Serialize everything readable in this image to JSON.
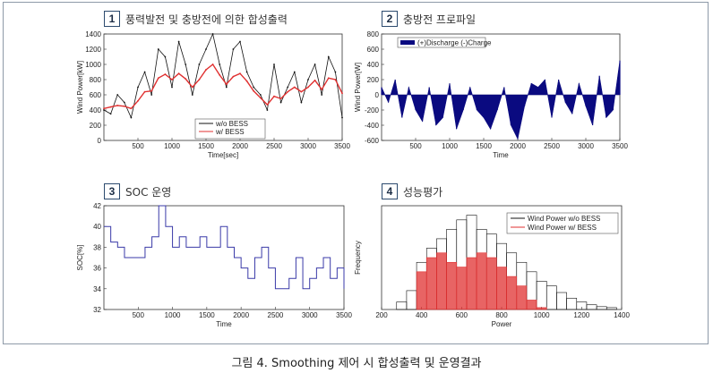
{
  "caption": "그림 4. Smoothing 제어 시 합성출력 및 운영결과",
  "panels": [
    {
      "num": "1",
      "title": "풍력발전 및 충방전에 의한 합성출력"
    },
    {
      "num": "2",
      "title": "충방전 프로파일"
    },
    {
      "num": "3",
      "title": "SOC 운영"
    },
    {
      "num": "4",
      "title": "성능평가"
    }
  ],
  "colors": {
    "black": "#111111",
    "red": "#e03030",
    "navy": "#0a0a80",
    "blue": "#3a3aa8"
  },
  "chart_data": [
    {
      "type": "line",
      "xlabel": "Time[sec]",
      "ylabel": "Wind Power[kW]",
      "xlim": [
        0,
        3500
      ],
      "ylim": [
        0,
        1400
      ],
      "xticks": [
        500,
        1000,
        1500,
        2000,
        2500,
        3000,
        3500
      ],
      "yticks": [
        0,
        200,
        400,
        600,
        800,
        1000,
        1200,
        1400
      ],
      "legend_position": "bottom-center",
      "x": [
        0,
        100,
        200,
        300,
        400,
        500,
        600,
        700,
        800,
        900,
        1000,
        1100,
        1200,
        1300,
        1400,
        1500,
        1600,
        1700,
        1800,
        1900,
        2000,
        2100,
        2200,
        2300,
        2400,
        2500,
        2600,
        2700,
        2800,
        2900,
        3000,
        3100,
        3200,
        3300,
        3400,
        3500
      ],
      "series": [
        {
          "name": "w/o BESS",
          "color": "black",
          "values": [
            400,
            350,
            600,
            500,
            300,
            700,
            900,
            600,
            1200,
            1100,
            700,
            1300,
            1000,
            600,
            1000,
            1200,
            1400,
            1000,
            700,
            1200,
            1300,
            900,
            700,
            600,
            400,
            1000,
            500,
            700,
            900,
            500,
            800,
            1000,
            600,
            1100,
            900,
            300
          ]
        },
        {
          "name": "w/ BESS",
          "color": "red",
          "values": [
            420,
            440,
            460,
            450,
            420,
            520,
            640,
            650,
            820,
            870,
            800,
            880,
            810,
            700,
            800,
            930,
            1000,
            860,
            740,
            840,
            880,
            780,
            650,
            560,
            470,
            580,
            550,
            640,
            700,
            640,
            700,
            790,
            670,
            820,
            800,
            620
          ]
        }
      ]
    },
    {
      "type": "area",
      "xlabel": "Time",
      "ylabel": "Wind Power[W]",
      "xlim": [
        0,
        3500
      ],
      "ylim": [
        -600,
        800
      ],
      "xticks": [
        500,
        1000,
        1500,
        2000,
        2500,
        3000,
        3500
      ],
      "yticks": [
        -600,
        -400,
        -200,
        0,
        200,
        400,
        600,
        800
      ],
      "legend_position": "top-left",
      "x": [
        0,
        100,
        200,
        300,
        400,
        500,
        600,
        700,
        800,
        900,
        1000,
        1100,
        1200,
        1300,
        1400,
        1500,
        1600,
        1700,
        1800,
        1900,
        2000,
        2100,
        2200,
        2300,
        2400,
        2500,
        2600,
        2700,
        2800,
        2900,
        3000,
        3100,
        3200,
        3300,
        3400,
        3500
      ],
      "series": [
        {
          "name": "(+)Discharge (-)Charge",
          "color": "navy",
          "values": [
            100,
            -100,
            200,
            -300,
            100,
            -200,
            -350,
            100,
            -400,
            -300,
            150,
            -450,
            -200,
            100,
            -200,
            -300,
            -450,
            -200,
            100,
            -400,
            -580,
            -150,
            150,
            100,
            200,
            -300,
            200,
            -100,
            -250,
            150,
            -150,
            -400,
            250,
            -300,
            -200,
            450
          ]
        }
      ]
    },
    {
      "type": "line",
      "xlabel": "Time",
      "ylabel": "SOC[%]",
      "xlim": [
        0,
        3500
      ],
      "ylim": [
        32,
        42
      ],
      "xticks": [
        500,
        1000,
        1500,
        2000,
        2500,
        3000,
        3500
      ],
      "yticks": [
        32,
        34,
        36,
        38,
        40,
        42
      ],
      "x": [
        0,
        100,
        200,
        300,
        400,
        500,
        600,
        700,
        800,
        900,
        1000,
        1100,
        1200,
        1300,
        1400,
        1500,
        1600,
        1700,
        1800,
        1900,
        2000,
        2100,
        2200,
        2300,
        2400,
        2500,
        2600,
        2700,
        2800,
        2900,
        3000,
        3100,
        3200,
        3300,
        3400,
        3500
      ],
      "series": [
        {
          "color": "blue",
          "values": [
            40,
            38.5,
            38,
            37,
            37,
            37,
            38,
            39,
            42,
            40,
            38,
            39,
            38,
            38,
            39,
            38,
            38,
            40,
            38,
            37,
            36,
            35,
            37,
            38,
            36,
            34,
            34,
            35,
            37,
            34,
            35,
            36,
            37,
            35,
            36,
            34
          ]
        }
      ]
    },
    {
      "type": "bar",
      "xlabel": "Power",
      "ylabel": "Frequency",
      "xlim": [
        200,
        1400
      ],
      "ylim": [
        0,
        110
      ],
      "xticks": [
        200,
        400,
        600,
        800,
        1000,
        1200,
        1400
      ],
      "legend_position": "top-right",
      "x": [
        300,
        350,
        400,
        450,
        500,
        550,
        600,
        650,
        700,
        750,
        800,
        850,
        900,
        950,
        1000,
        1050,
        1100,
        1150,
        1200,
        1250,
        1300,
        1350
      ],
      "series": [
        {
          "name": "Wind Power w/o BESS",
          "color": "black",
          "values": [
            8,
            20,
            50,
            65,
            75,
            85,
            95,
            100,
            85,
            80,
            70,
            60,
            50,
            40,
            30,
            25,
            18,
            12,
            8,
            5,
            3,
            2
          ]
        },
        {
          "name": "Wind Power w/ BESS",
          "color": "red",
          "values": [
            0,
            0,
            40,
            55,
            60,
            50,
            45,
            55,
            60,
            55,
            45,
            35,
            25,
            10,
            2,
            0,
            0,
            0,
            0,
            0,
            0,
            0
          ]
        }
      ]
    }
  ]
}
